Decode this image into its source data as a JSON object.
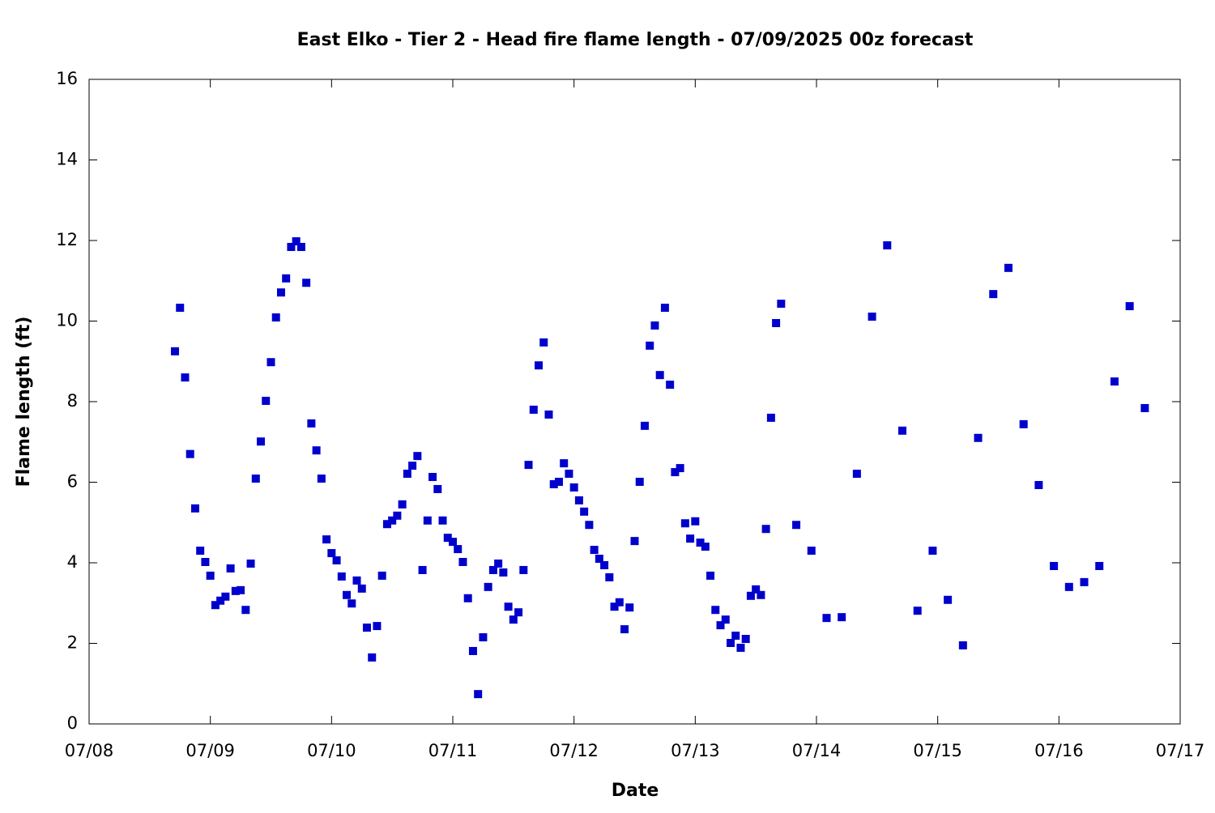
{
  "chart_data": {
    "type": "scatter",
    "title": "East Elko - Tier 2 - Head fire flame length - 07/09/2025 00z forecast",
    "xlabel": "Date",
    "ylabel": "Flame length (ft)",
    "color": "#0000cc",
    "xlim": [
      0,
      216
    ],
    "xticks": [
      {
        "value": 0,
        "label": "07/08"
      },
      {
        "value": 24,
        "label": "07/09"
      },
      {
        "value": 48,
        "label": "07/10"
      },
      {
        "value": 72,
        "label": "07/11"
      },
      {
        "value": 96,
        "label": "07/12"
      },
      {
        "value": 120,
        "label": "07/13"
      },
      {
        "value": 144,
        "label": "07/14"
      },
      {
        "value": 168,
        "label": "07/15"
      },
      {
        "value": 192,
        "label": "07/16"
      },
      {
        "value": 216,
        "label": "07/17"
      }
    ],
    "ylim": [
      0,
      16
    ],
    "yticks": [
      0,
      2,
      4,
      6,
      8,
      10,
      12,
      14,
      16
    ],
    "x": [
      17,
      18,
      19,
      20,
      21,
      22,
      23,
      24,
      25,
      26,
      27,
      28,
      29,
      30,
      31,
      32,
      33,
      34,
      35,
      36,
      37,
      38,
      39,
      40,
      41,
      42,
      43,
      44,
      45,
      46,
      47,
      48,
      49,
      50,
      51,
      52,
      53,
      54,
      55,
      56,
      57,
      58,
      59,
      60,
      61,
      62,
      63,
      64,
      65,
      66,
      67,
      68,
      69,
      70,
      71,
      72,
      73,
      74,
      75,
      76,
      77,
      78,
      79,
      80,
      81,
      82,
      83,
      84,
      85,
      86,
      87,
      88,
      89,
      90,
      91,
      92,
      93,
      94,
      95,
      96,
      97,
      98,
      99,
      100,
      101,
      102,
      103,
      104,
      105,
      106,
      107,
      108,
      109,
      110,
      111,
      112,
      113,
      114,
      115,
      116,
      117,
      118,
      119,
      120,
      121,
      122,
      123,
      124,
      125,
      126,
      127,
      128,
      129,
      130,
      131,
      132,
      133,
      134,
      135,
      136,
      137,
      140,
      143,
      146,
      149,
      152,
      155,
      158,
      161,
      164,
      167,
      170,
      173,
      176,
      179,
      182,
      185,
      188,
      191,
      194,
      197,
      200,
      203,
      206,
      209
    ],
    "values": [
      9.25,
      10.33,
      8.6,
      6.7,
      5.35,
      4.3,
      4.02,
      3.68,
      2.95,
      3.06,
      3.16,
      3.86,
      3.3,
      3.32,
      2.83,
      3.98,
      6.09,
      7.01,
      8.02,
      8.98,
      10.09,
      10.71,
      11.06,
      11.84,
      11.98,
      11.84,
      10.95,
      7.46,
      6.79,
      6.09,
      4.58,
      4.24,
      4.06,
      3.66,
      3.2,
      2.99,
      3.56,
      3.36,
      2.39,
      1.65,
      2.43,
      3.68,
      4.96,
      5.05,
      5.17,
      5.45,
      6.21,
      6.41,
      6.65,
      3.82,
      5.05,
      6.13,
      5.83,
      5.05,
      4.62,
      4.52,
      4.34,
      4.02,
      3.12,
      1.81,
      0.74,
      2.15,
      3.4,
      3.82,
      3.98,
      3.76,
      2.91,
      2.59,
      2.77,
      3.82,
      6.43,
      7.8,
      8.9,
      9.47,
      7.68,
      5.95,
      6.01,
      6.47,
      6.21,
      5.87,
      5.55,
      5.27,
      4.94,
      4.32,
      4.1,
      3.94,
      3.64,
      2.91,
      3.02,
      2.35,
      2.89,
      4.54,
      6.01,
      7.4,
      9.39,
      9.89,
      8.66,
      10.33,
      8.42,
      6.25,
      6.35,
      4.98,
      4.6,
      5.03,
      4.5,
      4.4,
      3.68,
      2.83,
      2.45,
      2.59,
      2.01,
      2.19,
      1.89,
      2.11,
      3.18,
      3.34,
      3.2,
      4.84,
      7.6,
      9.95,
      10.43,
      4.94,
      4.3,
      2.63,
      2.65,
      6.21,
      10.11,
      11.88,
      7.28,
      2.81,
      4.3,
      3.08,
      1.95,
      7.1,
      10.67,
      11.32,
      7.44,
      5.93,
      3.92,
      3.4,
      3.52,
      3.92,
      8.5,
      10.37,
      7.84
    ]
  }
}
